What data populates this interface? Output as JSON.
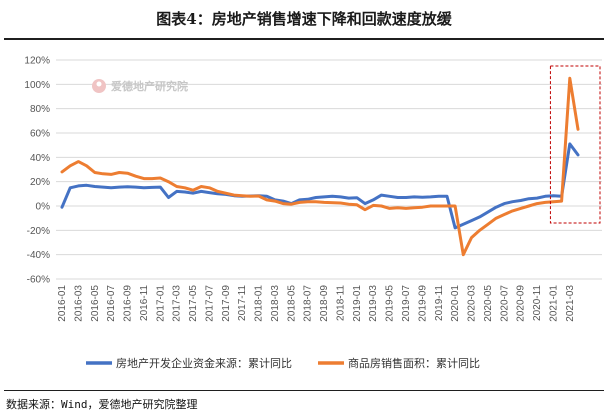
{
  "title": "图表4：房地产销售增速下降和回款速度放缓",
  "source": "数据来源：Wind，爱德地产研究院整理",
  "watermark": "爱德地产研究院",
  "colors": {
    "blue": "#4472C4",
    "orange": "#ED7D31",
    "highlight": "#C00000",
    "grid": "#d9d9d9"
  },
  "chart_data": {
    "type": "line",
    "ylim": [
      -60,
      120
    ],
    "yticks": [
      "-60%",
      "-40%",
      "-20%",
      "0%",
      "20%",
      "40%",
      "60%",
      "80%",
      "100%",
      "120%"
    ],
    "ytick_values": [
      -60,
      -40,
      -20,
      0,
      20,
      40,
      60,
      80,
      100,
      120
    ],
    "x_start": "2016-01",
    "x_end": "2021-04",
    "xticks": [
      "2016-01",
      "2016-03",
      "2016-05",
      "2016-07",
      "2016-09",
      "2016-11",
      "2017-01",
      "2017-03",
      "2017-05",
      "2017-07",
      "2017-09",
      "2017-11",
      "2018-01",
      "2018-03",
      "2018-05",
      "2018-07",
      "2018-09",
      "2018-11",
      "2019-01",
      "2019-03",
      "2019-05",
      "2019-07",
      "2019-09",
      "2019-11",
      "2020-01",
      "2020-03",
      "2020-05",
      "2020-07",
      "2020-09",
      "2020-11",
      "2021-01",
      "2021-03"
    ],
    "grid": "horizontal",
    "legend_position": "bottom",
    "series": [
      {
        "name": "房地产开发企业资金来源：累计同比",
        "color": "#4472C4",
        "x": [
          "2016-01",
          "2016-02",
          "2016-03",
          "2016-04",
          "2016-05",
          "2016-06",
          "2016-07",
          "2016-08",
          "2016-09",
          "2016-10",
          "2016-11",
          "2016-12",
          "2017-01",
          "2017-02",
          "2017-03",
          "2017-04",
          "2017-05",
          "2017-06",
          "2017-07",
          "2017-08",
          "2017-09",
          "2017-10",
          "2017-11",
          "2017-12",
          "2018-01",
          "2018-02",
          "2018-03",
          "2018-04",
          "2018-05",
          "2018-06",
          "2018-07",
          "2018-08",
          "2018-09",
          "2018-10",
          "2018-11",
          "2018-12",
          "2019-01",
          "2019-02",
          "2019-03",
          "2019-04",
          "2019-05",
          "2019-06",
          "2019-07",
          "2019-08",
          "2019-09",
          "2019-10",
          "2019-11",
          "2019-12",
          "2020-01",
          "2020-02",
          "2020-03",
          "2020-04",
          "2020-05",
          "2020-06",
          "2020-07",
          "2020-08",
          "2020-09",
          "2020-10",
          "2020-11",
          "2020-12",
          "2021-01",
          "2021-02",
          "2021-03",
          "2021-04"
        ],
        "values": [
          -1,
          15,
          16.5,
          17,
          16,
          15.5,
          15,
          15.5,
          15.8,
          15.5,
          15,
          15.3,
          15.5,
          7,
          12,
          11.5,
          10.5,
          12,
          11,
          10,
          9.5,
          8.5,
          8,
          8.2,
          8.5,
          8,
          5,
          4,
          2,
          5,
          5.5,
          7,
          7.5,
          8,
          7.5,
          6.5,
          6.8,
          2,
          5,
          9,
          8,
          7,
          7,
          7.5,
          7.2,
          7.5,
          8,
          8,
          -18,
          -15,
          -12,
          -9,
          -5,
          -1,
          2,
          3.5,
          4.5,
          6,
          6.5,
          8,
          8.5,
          8,
          51,
          42
        ]
      },
      {
        "name": "商品房销售面积：累计同比",
        "color": "#ED7D31",
        "x": [
          "2016-01",
          "2016-02",
          "2016-03",
          "2016-04",
          "2016-05",
          "2016-06",
          "2016-07",
          "2016-08",
          "2016-09",
          "2016-10",
          "2016-11",
          "2016-12",
          "2017-01",
          "2017-02",
          "2017-03",
          "2017-04",
          "2017-05",
          "2017-06",
          "2017-07",
          "2017-08",
          "2017-09",
          "2017-10",
          "2017-11",
          "2017-12",
          "2018-01",
          "2018-02",
          "2018-03",
          "2018-04",
          "2018-05",
          "2018-06",
          "2018-07",
          "2018-08",
          "2018-09",
          "2018-11",
          "2018-12",
          "2019-01",
          "2019-02",
          "2019-03",
          "2019-04",
          "2019-05",
          "2019-06",
          "2019-07",
          "2019-08",
          "2019-09",
          "2019-10",
          "2019-11",
          "2019-12",
          "2020-01",
          "2020-02",
          "2020-03",
          "2020-04",
          "2020-05",
          "2020-06",
          "2020-07",
          "2020-08",
          "2020-09",
          "2020-10",
          "2020-11",
          "2020-12",
          "2021-01",
          "2021-02",
          "2021-03",
          "2021-04"
        ],
        "values": [
          28,
          33,
          36.5,
          33,
          27.5,
          26.5,
          26,
          27.5,
          27,
          24.5,
          22.5,
          22.5,
          23,
          20,
          16,
          15,
          13,
          16,
          15,
          12,
          10.5,
          9,
          8.5,
          8,
          8.2,
          5,
          4,
          2,
          1.5,
          3,
          3.5,
          3.5,
          3,
          2.5,
          1.5,
          1,
          -3,
          0.5,
          0,
          -2,
          -1.5,
          -2,
          -1.5,
          -1,
          0,
          0,
          0,
          0,
          -40,
          -26,
          -20,
          -15,
          -10,
          -7,
          -4,
          -2,
          0,
          2,
          3,
          3.5,
          4,
          105,
          63
        ]
      }
    ]
  }
}
